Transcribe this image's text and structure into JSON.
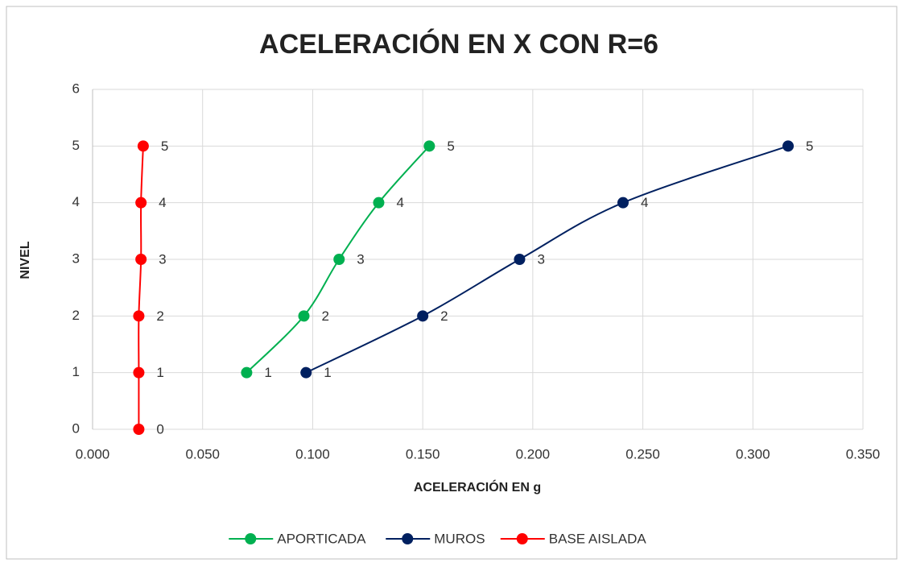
{
  "chart_data": {
    "type": "scatter",
    "title": "ACELERACIÓN EN X CON R=6",
    "x_label": "ACELERACIÓN EN  g",
    "y_label": "NIVEL",
    "xlim": [
      0,
      0.35
    ],
    "xticks": [
      {
        "value": 0,
        "label": "0.000"
      },
      {
        "value": 0.05,
        "label": "0.050"
      },
      {
        "value": 0.1,
        "label": "0.100"
      },
      {
        "value": 0.15,
        "label": "0.150"
      },
      {
        "value": 0.2,
        "label": "0.200"
      },
      {
        "value": 0.25,
        "label": "0.250"
      },
      {
        "value": 0.3,
        "label": "0.300"
      },
      {
        "value": 0.35,
        "label": "0.350"
      }
    ],
    "ylim": [
      0,
      6
    ],
    "yticks": [
      0,
      1,
      2,
      3,
      4,
      5,
      6
    ],
    "grid": true,
    "legend": "bottom",
    "series": [
      {
        "name": "APORTICADA",
        "color": "#00b050",
        "x": [
          0.07,
          0.096,
          0.112,
          0.13,
          0.153
        ],
        "values": [
          1,
          2,
          3,
          4,
          5
        ]
      },
      {
        "name": "MUROS",
        "color": "#002060",
        "x": [
          0.097,
          0.15,
          0.194,
          0.241,
          0.316
        ],
        "values": [
          1,
          2,
          3,
          4,
          5
        ]
      },
      {
        "name": "BASE AISLADA",
        "color": "#ff0000",
        "x": [
          0.021,
          0.021,
          0.021,
          0.022,
          0.022,
          0.023
        ],
        "values": [
          0,
          1,
          2,
          3,
          4,
          5
        ]
      }
    ]
  }
}
